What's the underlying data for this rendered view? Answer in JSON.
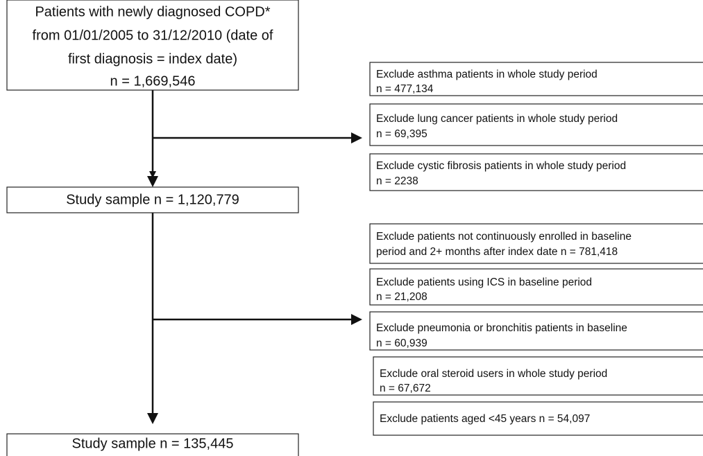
{
  "boxes": [
    {
      "lines": [
        "Patients with newly diagnosed COPD*",
        "from 01/01/2005 to 31/12/2010 (date of",
        "first diagnosis = index date)",
        "n = 1,669,546"
      ]
    },
    {
      "lines": [
        "Study sample n = 1,120,779"
      ]
    },
    {
      "lines": [
        "Study sample n = 135,445"
      ]
    }
  ],
  "exclusions": [
    [
      {
        "lines": [
          "Exclude asthma patients in whole study period",
          "n = 477,134"
        ]
      },
      {
        "lines": [
          "Exclude lung cancer patients in whole study period",
          "n = 69,395"
        ]
      },
      {
        "lines": [
          "Exclude cystic fibrosis patients in whole study period",
          "n = 2238"
        ]
      }
    ],
    [
      {
        "lines": [
          "Exclude patients not continuously enrolled in baseline",
          "period and 2+ months after index date n = 781,418"
        ]
      },
      {
        "lines": [
          "Exclude patients using ICS in baseline period",
          "n = 21,208"
        ]
      },
      {
        "lines": [
          "Exclude pneumonia or bronchitis patients in baseline",
          "n = 60,939"
        ]
      },
      {
        "lines": [
          "Exclude oral steroid users in whole study period",
          "n = 67,672"
        ]
      },
      {
        "lines": [
          "Exclude patients aged <45 years n = 54,097"
        ]
      }
    ]
  ]
}
